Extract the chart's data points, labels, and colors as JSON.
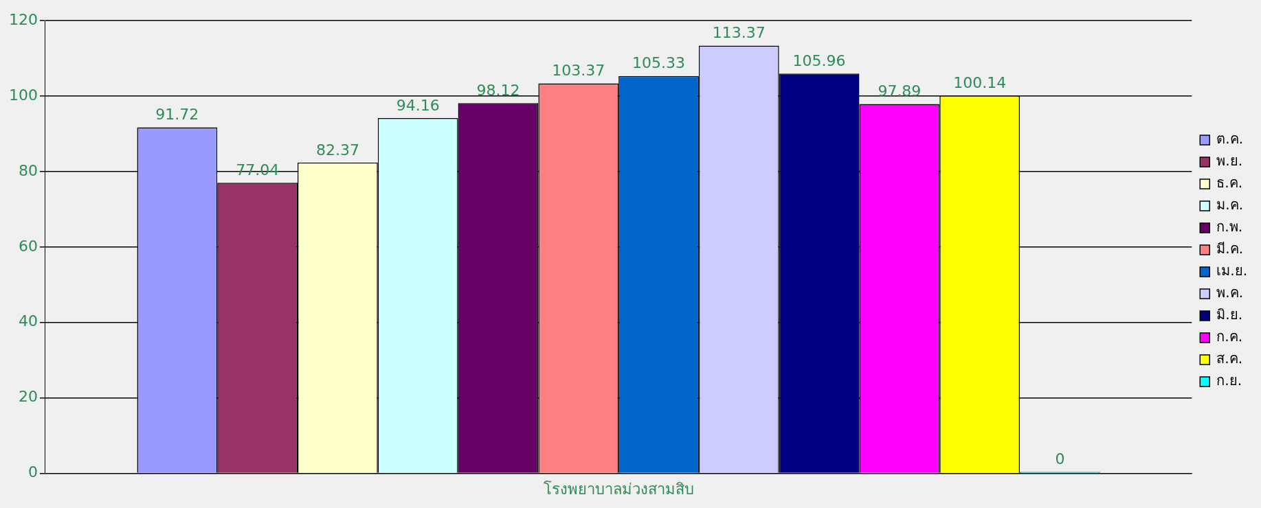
{
  "chart_data": {
    "type": "bar",
    "xlabel": null,
    "categories": [
      "โรงพยาบาลม่วงสามสิบ"
    ],
    "series": [
      {
        "name": "ต.ค.",
        "color": "#9999ff",
        "values": [
          91.72
        ]
      },
      {
        "name": "พ.ย.",
        "color": "#993366",
        "values": [
          77.04
        ]
      },
      {
        "name": "ธ.ค.",
        "color": "#ffffcc",
        "values": [
          82.37
        ]
      },
      {
        "name": "ม.ค.",
        "color": "#ccffff",
        "values": [
          94.16
        ]
      },
      {
        "name": "ก.พ.",
        "color": "#660066",
        "values": [
          98.12
        ]
      },
      {
        "name": "มี.ค.",
        "color": "#ff8080",
        "values": [
          103.37
        ]
      },
      {
        "name": "เม.ย.",
        "color": "#0066cc",
        "values": [
          105.33
        ]
      },
      {
        "name": "พ.ค.",
        "color": "#ccccff",
        "values": [
          113.37
        ]
      },
      {
        "name": "มิ.ย.",
        "color": "#000080",
        "values": [
          105.96
        ]
      },
      {
        "name": "ก.ค.",
        "color": "#ff00ff",
        "values": [
          97.89
        ]
      },
      {
        "name": "ส.ค.",
        "color": "#ffff00",
        "values": [
          100.14
        ]
      },
      {
        "name": "ก.ย.",
        "color": "#00ffff",
        "values": [
          0
        ]
      }
    ],
    "ylim": [
      0,
      120
    ],
    "yticks": [
      0,
      20,
      40,
      60,
      80,
      100,
      120
    ],
    "grid": "y",
    "legend": "right",
    "data_labels": true
  }
}
